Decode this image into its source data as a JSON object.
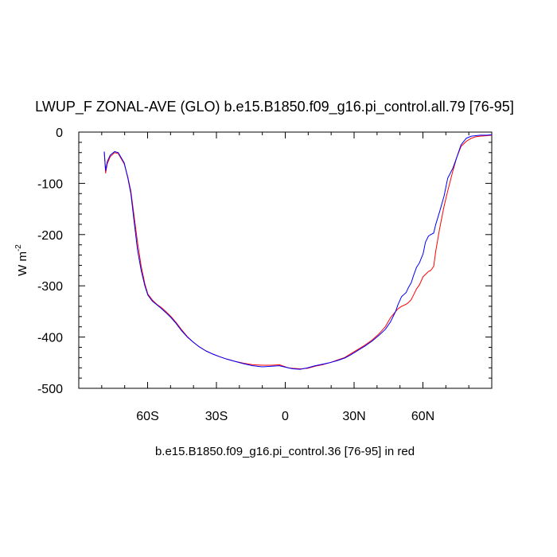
{
  "chart_data": {
    "type": "line",
    "title": "LWUP_F ZONAL-AVE (GLO) b.e15.B1850.f09_g16.pi_control.all.79 [76-95]",
    "xlabel": "b.e15.B1850.f09_g16.pi_control.36 [76-95] in red",
    "ylabel": "W m",
    "ylabel_superscript": "-2",
    "xlim": [
      -90,
      90
    ],
    "ylim": [
      -500,
      0
    ],
    "x_ticks": [
      {
        "value": -60,
        "label": "60S"
      },
      {
        "value": -30,
        "label": "30S"
      },
      {
        "value": 0,
        "label": "0"
      },
      {
        "value": 30,
        "label": "30N"
      },
      {
        "value": 60,
        "label": "60N"
      }
    ],
    "y_ticks": [
      {
        "value": 0,
        "label": "0"
      },
      {
        "value": -100,
        "label": "-100"
      },
      {
        "value": -200,
        "label": "-200"
      },
      {
        "value": -300,
        "label": "-300"
      },
      {
        "value": -400,
        "label": "-400"
      },
      {
        "value": -500,
        "label": "-500"
      }
    ],
    "series": [
      {
        "name": "b.e15.B1850.f09_g16.pi_control.all.79",
        "color": "#0000ff",
        "x": [
          -78.9,
          -78.3,
          -77.6,
          -76.3,
          -74.4,
          -72.8,
          -71.5,
          -70.2,
          -68.6,
          -67.3,
          -66.0,
          -64.4,
          -62.8,
          -61.2,
          -59.9,
          -57.9,
          -56.0,
          -54.1,
          -52.1,
          -49.8,
          -47.5,
          -45.3,
          -42.7,
          -40.1,
          -37.5,
          -34.6,
          -31.7,
          -28.8,
          -25.5,
          -22.3,
          -18.1,
          -14.2,
          -10.0,
          -5.8,
          -2.6,
          -0.6,
          1.3,
          3.3,
          6.5,
          9.7,
          13.0,
          16.2,
          19.4,
          22.6,
          25.9,
          28.4,
          31.7,
          34.6,
          37.8,
          41.0,
          43.6,
          45.9,
          48.1,
          49.1,
          50.7,
          52.7,
          53.6,
          54.9,
          55.9,
          57.2,
          58.5,
          60.1,
          61.1,
          62.4,
          63.4,
          64.7,
          65.6,
          67.3,
          69.2,
          70.8,
          73.1,
          74.7,
          76.6,
          78.9,
          81.1,
          83.1,
          85.0,
          87.9,
          90.0
        ],
        "y": [
          -38,
          -75,
          -58,
          -45,
          -38,
          -40,
          -50,
          -60,
          -90,
          -120,
          -170,
          -230,
          -270,
          -300,
          -318,
          -330,
          -337,
          -344,
          -352,
          -362,
          -374,
          -387,
          -400,
          -410,
          -419,
          -427,
          -433,
          -438,
          -443,
          -447,
          -452,
          -456,
          -458,
          -457,
          -456,
          -458,
          -460,
          -462,
          -463,
          -460,
          -456,
          -453,
          -450,
          -446,
          -441,
          -435,
          -426,
          -418,
          -408,
          -396,
          -385,
          -370,
          -350,
          -337,
          -321,
          -313,
          -304,
          -294,
          -280,
          -264,
          -255,
          -237,
          -215,
          -203,
          -200,
          -197,
          -180,
          -155,
          -125,
          -90,
          -70,
          -50,
          -25,
          -12,
          -8,
          -7,
          -6,
          -6,
          -5
        ]
      },
      {
        "name": "b.e15.B1850.f09_g16.pi_control.36",
        "color": "#ff0000",
        "x": [
          -78.9,
          -78.3,
          -77.6,
          -76.3,
          -74.4,
          -72.8,
          -71.5,
          -70.2,
          -68.6,
          -67.3,
          -66.0,
          -64.4,
          -62.8,
          -61.2,
          -59.9,
          -57.9,
          -56.0,
          -54.1,
          -52.1,
          -49.8,
          -47.5,
          -45.3,
          -42.7,
          -40.1,
          -37.5,
          -34.6,
          -31.7,
          -28.8,
          -25.5,
          -22.3,
          -18.1,
          -14.2,
          -10.0,
          -5.8,
          -2.6,
          -0.6,
          1.3,
          3.3,
          6.5,
          9.7,
          13.0,
          16.2,
          19.4,
          22.6,
          25.9,
          28.4,
          31.7,
          34.6,
          37.8,
          41.0,
          43.6,
          45.9,
          48.1,
          49.1,
          50.7,
          52.7,
          53.6,
          54.9,
          55.9,
          57.2,
          58.5,
          60.1,
          61.1,
          62.4,
          63.4,
          64.7,
          65.6,
          67.3,
          69.2,
          70.8,
          73.1,
          74.7,
          76.6,
          78.9,
          81.1,
          83.1,
          85.0,
          87.9,
          90.0
        ],
        "y": [
          -38,
          -80,
          -62,
          -48,
          -40,
          -42,
          -52,
          -62,
          -88,
          -115,
          -160,
          -215,
          -262,
          -296,
          -316,
          -328,
          -336,
          -342,
          -350,
          -360,
          -372,
          -385,
          -399,
          -410,
          -419,
          -427,
          -433,
          -438,
          -443,
          -447,
          -451,
          -454,
          -455,
          -455,
          -454,
          -457,
          -460,
          -461,
          -462,
          -461,
          -457,
          -454,
          -450,
          -445,
          -440,
          -433,
          -424,
          -416,
          -406,
          -393,
          -380,
          -362,
          -350,
          -345,
          -340,
          -336,
          -333,
          -327,
          -318,
          -306,
          -298,
          -282,
          -278,
          -272,
          -270,
          -262,
          -232,
          -188,
          -145,
          -115,
          -75,
          -50,
          -28,
          -18,
          -12,
          -9,
          -8,
          -7,
          -6
        ]
      }
    ]
  }
}
